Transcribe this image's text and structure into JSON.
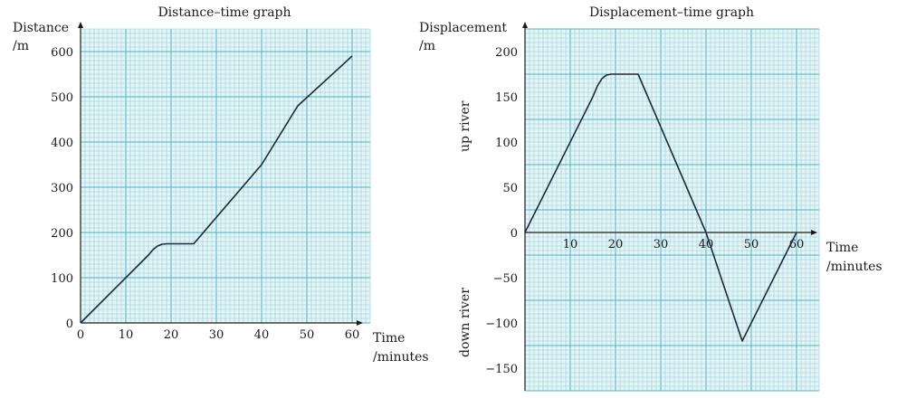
{
  "colors": {
    "grid_bg": "#e6f4f6",
    "grid_minor": "#8fd0d9",
    "grid_major": "#4cb3c2",
    "line": "#1b2a3a",
    "axis": "#1a1a1a"
  },
  "chart_data": [
    {
      "type": "line",
      "title": "Distance–time graph",
      "ylabel_line1": "Distance",
      "ylabel_line2": "/m",
      "xlabel_line1": "Time",
      "xlabel_line2": "/minutes",
      "xlim": [
        0,
        64
      ],
      "ylim": [
        0,
        640
      ],
      "xticks": [
        0,
        10,
        20,
        30,
        40,
        50,
        60
      ],
      "yticks": [
        0,
        100,
        200,
        300,
        400,
        500,
        600
      ],
      "grid": true,
      "series": [
        {
          "points": [
            [
              0,
              0
            ],
            [
              15,
              150
            ],
            [
              16,
              162
            ],
            [
              17,
              170
            ],
            [
              18,
              174
            ],
            [
              19,
              175
            ],
            [
              25,
              175
            ],
            [
              40,
              350
            ],
            [
              48,
              480
            ],
            [
              60,
              590
            ]
          ]
        }
      ]
    },
    {
      "type": "line",
      "title": "Displacement–time graph",
      "ylabel_line1": "Displacement",
      "ylabel_line2": "/m",
      "xlabel_line1": "Time",
      "xlabel_line2": "/minutes",
      "side_label_up": "up river",
      "side_label_down": "down river",
      "xlim": [
        0,
        65
      ],
      "ylim": [
        -175,
        225
      ],
      "xticks": [
        10,
        20,
        30,
        40,
        50,
        60
      ],
      "yticks": [
        -150,
        -100,
        -50,
        0,
        50,
        100,
        150,
        200
      ],
      "grid": true,
      "series": [
        {
          "points": [
            [
              0,
              0
            ],
            [
              15,
              150
            ],
            [
              16,
              162
            ],
            [
              17,
              170
            ],
            [
              18,
              174
            ],
            [
              19,
              175
            ],
            [
              25,
              175
            ],
            [
              40,
              0
            ],
            [
              48,
              -120
            ],
            [
              60,
              0
            ]
          ]
        }
      ]
    }
  ]
}
